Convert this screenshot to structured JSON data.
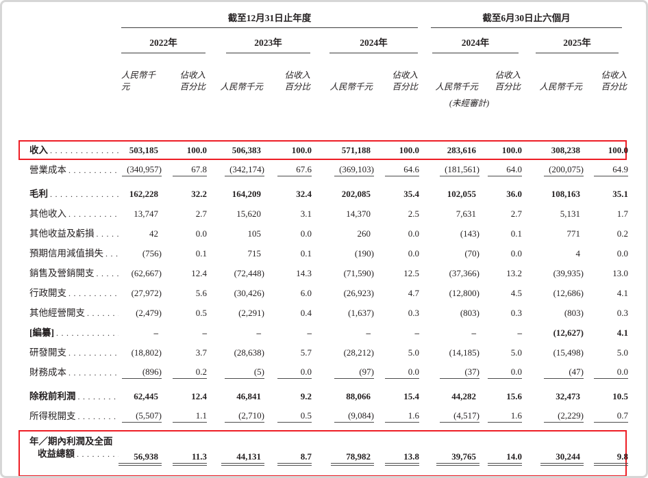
{
  "table": {
    "groups": [
      {
        "title": "截至12月31日止年度",
        "years": [
          {
            "label": "2022年"
          },
          {
            "label": "2023年"
          },
          {
            "label": "2024年"
          }
        ]
      },
      {
        "title": "截至6月30日止六個月",
        "years": [
          {
            "label": "2024年",
            "note": "(未經審計)"
          },
          {
            "label": "2025年"
          }
        ]
      }
    ],
    "subheaders": {
      "amount": "人民幣千元",
      "pct_line1": "佔收入",
      "pct_line2": "百分比"
    },
    "rows": [
      {
        "label": "收入",
        "bold": true,
        "boxed": true,
        "values": [
          "503,185",
          "100.0",
          "506,383",
          "100.0",
          "571,188",
          "100.0",
          "283,616",
          "100.0",
          "308,238",
          "100.0"
        ]
      },
      {
        "label": "營業成本",
        "underline": "single",
        "gap_after": true,
        "values": [
          "(340,957)",
          "67.8",
          "(342,174)",
          "67.6",
          "(369,103)",
          "64.6",
          "(181,561)",
          "64.0",
          "(200,075)",
          "64.9"
        ]
      },
      {
        "label": "毛利",
        "bold": true,
        "values": [
          "162,228",
          "32.2",
          "164,209",
          "32.4",
          "202,085",
          "35.4",
          "102,055",
          "36.0",
          "108,163",
          "35.1"
        ]
      },
      {
        "label": "其他收入",
        "values": [
          "13,747",
          "2.7",
          "15,620",
          "3.1",
          "14,370",
          "2.5",
          "7,631",
          "2.7",
          "5,131",
          "1.7"
        ]
      },
      {
        "label": "其他收益及虧損",
        "values": [
          "42",
          "0.0",
          "105",
          "0.0",
          "260",
          "0.0",
          "(143)",
          "0.1",
          "771",
          "0.2"
        ]
      },
      {
        "label": "預期信用減值損失",
        "values": [
          "(756)",
          "0.1",
          "715",
          "0.1",
          "(190)",
          "0.0",
          "(70)",
          "0.0",
          "4",
          "0.0"
        ]
      },
      {
        "label": "銷售及營銷開支",
        "values": [
          "(62,667)",
          "12.4",
          "(72,448)",
          "14.3",
          "(71,590)",
          "12.5",
          "(37,366)",
          "13.2",
          "(39,935)",
          "13.0"
        ]
      },
      {
        "label": "行政開支",
        "values": [
          "(27,972)",
          "5.6",
          "(30,426)",
          "6.0",
          "(26,923)",
          "4.7",
          "(12,800)",
          "4.5",
          "(12,686)",
          "4.1"
        ]
      },
      {
        "label": "其他經營開支",
        "values": [
          "(2,479)",
          "0.5",
          "(2,291)",
          "0.4",
          "(1,637)",
          "0.3",
          "(803)",
          "0.3",
          "(803)",
          "0.3"
        ]
      },
      {
        "label": "[編纂]",
        "bold": true,
        "values": [
          "–",
          "–",
          "–",
          "–",
          "–",
          "–",
          "–",
          "–",
          "(12,627)",
          "4.1"
        ]
      },
      {
        "label": "研發開支",
        "values": [
          "(18,802)",
          "3.7",
          "(28,638)",
          "5.7",
          "(28,212)",
          "5.0",
          "(14,185)",
          "5.0",
          "(15,498)",
          "5.0"
        ]
      },
      {
        "label": "財務成本",
        "underline": "single",
        "gap_after": true,
        "values": [
          "(896)",
          "0.2",
          "(5)",
          "0.0",
          "(97)",
          "0.0",
          "(37)",
          "0.0",
          "(47)",
          "0.0"
        ]
      },
      {
        "label": "除稅前利潤",
        "bold": true,
        "values": [
          "62,445",
          "12.4",
          "46,841",
          "9.2",
          "88,066",
          "15.4",
          "44,282",
          "15.6",
          "32,473",
          "10.5"
        ]
      },
      {
        "label": "所得稅開支",
        "underline": "single",
        "gap_after": true,
        "values": [
          "(5,507)",
          "1.1",
          "(2,710)",
          "0.5",
          "(9,084)",
          "1.6",
          "(4,517)",
          "1.6",
          "(2,229)",
          "0.7"
        ]
      },
      {
        "label": "年／期內利潤及全面",
        "label2": "收益總額",
        "bold": true,
        "boxed": true,
        "underline": "double",
        "values": [
          "56,938",
          "11.3",
          "44,131",
          "8.7",
          "78,982",
          "13.8",
          "39,765",
          "14.0",
          "30,244",
          "9.8"
        ]
      }
    ]
  },
  "colors": {
    "highlight_box": "#ed1c24",
    "text": "#231f20",
    "rule": "#4a4a4a",
    "page_border": "#d6d6d6"
  }
}
